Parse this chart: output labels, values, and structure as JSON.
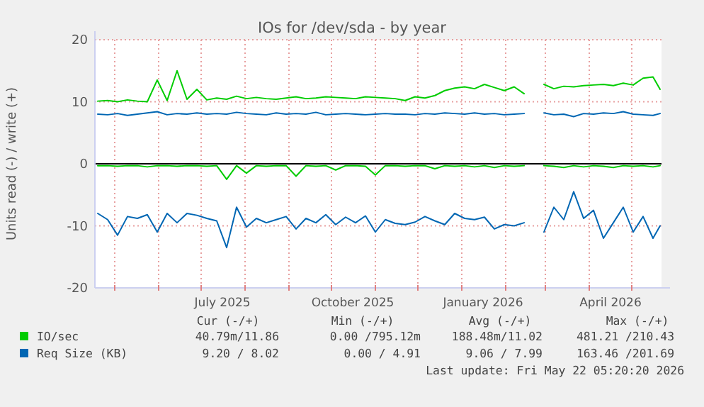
{
  "chart_data": {
    "type": "line",
    "title": "IOs for /dev/sda - by year",
    "ylabel": "Units read (-) / write (+)",
    "x": [
      "2025-04-19",
      "2025-04-26",
      "2025-05-03",
      "2025-05-10",
      "2025-05-17",
      "2025-05-24",
      "2025-05-31",
      "2025-06-07",
      "2025-06-14",
      "2025-06-21",
      "2025-06-28",
      "2025-07-05",
      "2025-07-12",
      "2025-07-19",
      "2025-07-26",
      "2025-08-02",
      "2025-08-09",
      "2025-08-16",
      "2025-08-23",
      "2025-08-30",
      "2025-09-06",
      "2025-09-13",
      "2025-09-20",
      "2025-09-27",
      "2025-10-04",
      "2025-10-11",
      "2025-10-18",
      "2025-10-25",
      "2025-11-01",
      "2025-11-08",
      "2025-11-15",
      "2025-11-22",
      "2025-11-29",
      "2025-12-06",
      "2025-12-13",
      "2025-12-20",
      "2025-12-27",
      "2026-01-03",
      "2026-01-10",
      "2026-01-17",
      "2026-01-24",
      "2026-01-31",
      "2026-02-07",
      "2026-02-14",
      "2026-02-21",
      "2026-02-28",
      "2026-03-07",
      "2026-03-14",
      "2026-03-21",
      "2026-03-28",
      "2026-04-04",
      "2026-04-11",
      "2026-04-18",
      "2026-04-25",
      "2026-05-02",
      "2026-05-09",
      "2026-05-16",
      "2026-05-21"
    ],
    "series": [
      {
        "name": "IO/sec",
        "color": "#00cc00",
        "values": [
          10.1,
          10.2,
          10.0,
          10.3,
          10.1,
          10.0,
          13.5,
          10.2,
          15,
          10.4,
          12,
          10.3,
          10.6,
          10.4,
          10.9,
          10.5,
          10.7,
          10.5,
          10.4,
          10.6,
          10.8,
          10.5,
          10.6,
          10.8,
          10.7,
          10.6,
          10.5,
          10.8,
          10.7,
          10.6,
          10.5,
          10.2,
          10.8,
          10.6,
          11.0,
          11.8,
          12.2,
          12.4,
          12.1,
          12.8,
          12.3,
          11.8,
          12.4,
          11.3,
          null,
          12.8,
          12.1,
          12.5,
          12.4,
          12.6,
          12.7,
          12.8,
          12.6,
          13.0,
          12.7,
          13.8,
          14.0,
          12.0
        ]
      },
      {
        "color": "#00cc00",
        "values": [
          -0.3,
          -0.3,
          -0.4,
          -0.3,
          -0.3,
          -0.5,
          -0.3,
          -0.3,
          -0.4,
          -0.3,
          -0.3,
          -0.4,
          -0.3,
          -2.5,
          -0.3,
          -1.5,
          -0.3,
          -0.4,
          -0.3,
          -0.3,
          -2.0,
          -0.3,
          -0.4,
          -0.3,
          -1.0,
          -0.3,
          -0.3,
          -0.4,
          -1.8,
          -0.3,
          -0.3,
          -0.4,
          -0.3,
          -0.3,
          -0.8,
          -0.3,
          -0.4,
          -0.3,
          -0.5,
          -0.3,
          -0.6,
          -0.3,
          -0.4,
          -0.3,
          null,
          -0.3,
          -0.4,
          -0.6,
          -0.3,
          -0.5,
          -0.3,
          -0.4,
          -0.6,
          -0.3,
          -0.4,
          -0.3,
          -0.5,
          -0.3
        ]
      },
      {
        "name": "Req Size (KB)",
        "color": "#0066b3",
        "values": [
          8.0,
          7.9,
          8.1,
          7.8,
          8.0,
          8.2,
          8.4,
          7.9,
          8.1,
          8.0,
          8.2,
          8.0,
          8.1,
          8.0,
          8.3,
          8.1,
          8.0,
          7.9,
          8.2,
          8.0,
          8.1,
          8.0,
          8.3,
          7.9,
          8.0,
          8.1,
          8.0,
          7.9,
          8.0,
          8.1,
          8.0,
          8.0,
          7.9,
          8.1,
          8.0,
          8.2,
          8.1,
          8.0,
          8.2,
          8.0,
          8.1,
          7.9,
          8.0,
          8.1,
          null,
          8.2,
          7.9,
          8.0,
          7.6,
          8.1,
          8.0,
          8.2,
          8.1,
          8.4,
          8.0,
          7.9,
          7.8,
          8.1
        ]
      },
      {
        "color": "#0066b3",
        "values": [
          -8.0,
          -9.0,
          -11.5,
          -8.5,
          -8.8,
          -8.2,
          -11.0,
          -8.0,
          -9.5,
          -8.0,
          -8.3,
          -8.8,
          -9.2,
          -13.5,
          -7.0,
          -10.2,
          -8.8,
          -9.5,
          -9.0,
          -8.5,
          -10.5,
          -8.8,
          -9.5,
          -8.2,
          -9.8,
          -8.6,
          -9.5,
          -8.4,
          -11.0,
          -9.0,
          -9.6,
          -9.8,
          -9.4,
          -8.5,
          -9.2,
          -9.8,
          -8.0,
          -8.8,
          -9.0,
          -8.6,
          -10.5,
          -9.8,
          -10.0,
          -9.5,
          null,
          -11.0,
          -7.0,
          -9.0,
          -4.5,
          -8.8,
          -7.5,
          -12.0,
          -9.5,
          -7.0,
          -11.0,
          -8.5,
          -12.0,
          -10.0
        ]
      }
    ],
    "xlim": [
      "2025-04-17",
      "2026-05-22"
    ],
    "xticks": [
      {
        "value": "2025-05-01",
        "label": null
      },
      {
        "value": "2025-06-01",
        "label": null
      },
      {
        "value": "2025-07-01",
        "label": null
      },
      {
        "value": "2025-07-16",
        "label": "July 2025"
      },
      {
        "value": "2025-08-01",
        "label": null
      },
      {
        "value": "2025-09-01",
        "label": null
      },
      {
        "value": "2025-10-01",
        "label": null
      },
      {
        "value": "2025-10-16",
        "label": "October 2025"
      },
      {
        "value": "2025-11-01",
        "label": null
      },
      {
        "value": "2025-12-01",
        "label": null
      },
      {
        "value": "2026-01-01",
        "label": null
      },
      {
        "value": "2026-01-16",
        "label": "January 2026"
      },
      {
        "value": "2026-02-01",
        "label": null
      },
      {
        "value": "2026-03-01",
        "label": null
      },
      {
        "value": "2026-04-01",
        "label": null
      },
      {
        "value": "2026-04-16",
        "label": "April 2026"
      },
      {
        "value": "2026-05-01",
        "label": null
      }
    ],
    "ylim": [
      -20,
      20
    ],
    "yticks": [
      -20,
      -10,
      0,
      10,
      20
    ],
    "grid": true,
    "legend": "bottom",
    "line_style": "solid",
    "ref_lines": [
      {
        "axis": "y",
        "value": 0,
        "color": "#000000"
      }
    ],
    "annotations": [
      "Cur (-/+)",
      "Min (-/+)",
      "Avg (-/+)",
      "Max (-/+)",
      "40.79m/11.86",
      "0.00 /795.12m",
      "188.48m/11.02",
      "481.21 /210.43",
      "9.20 / 8.02",
      "0.00 / 4.91",
      "9.06 / 7.99",
      "163.46 /201.69",
      "Last update: Fri May 22 05:20:20 2026"
    ]
  }
}
